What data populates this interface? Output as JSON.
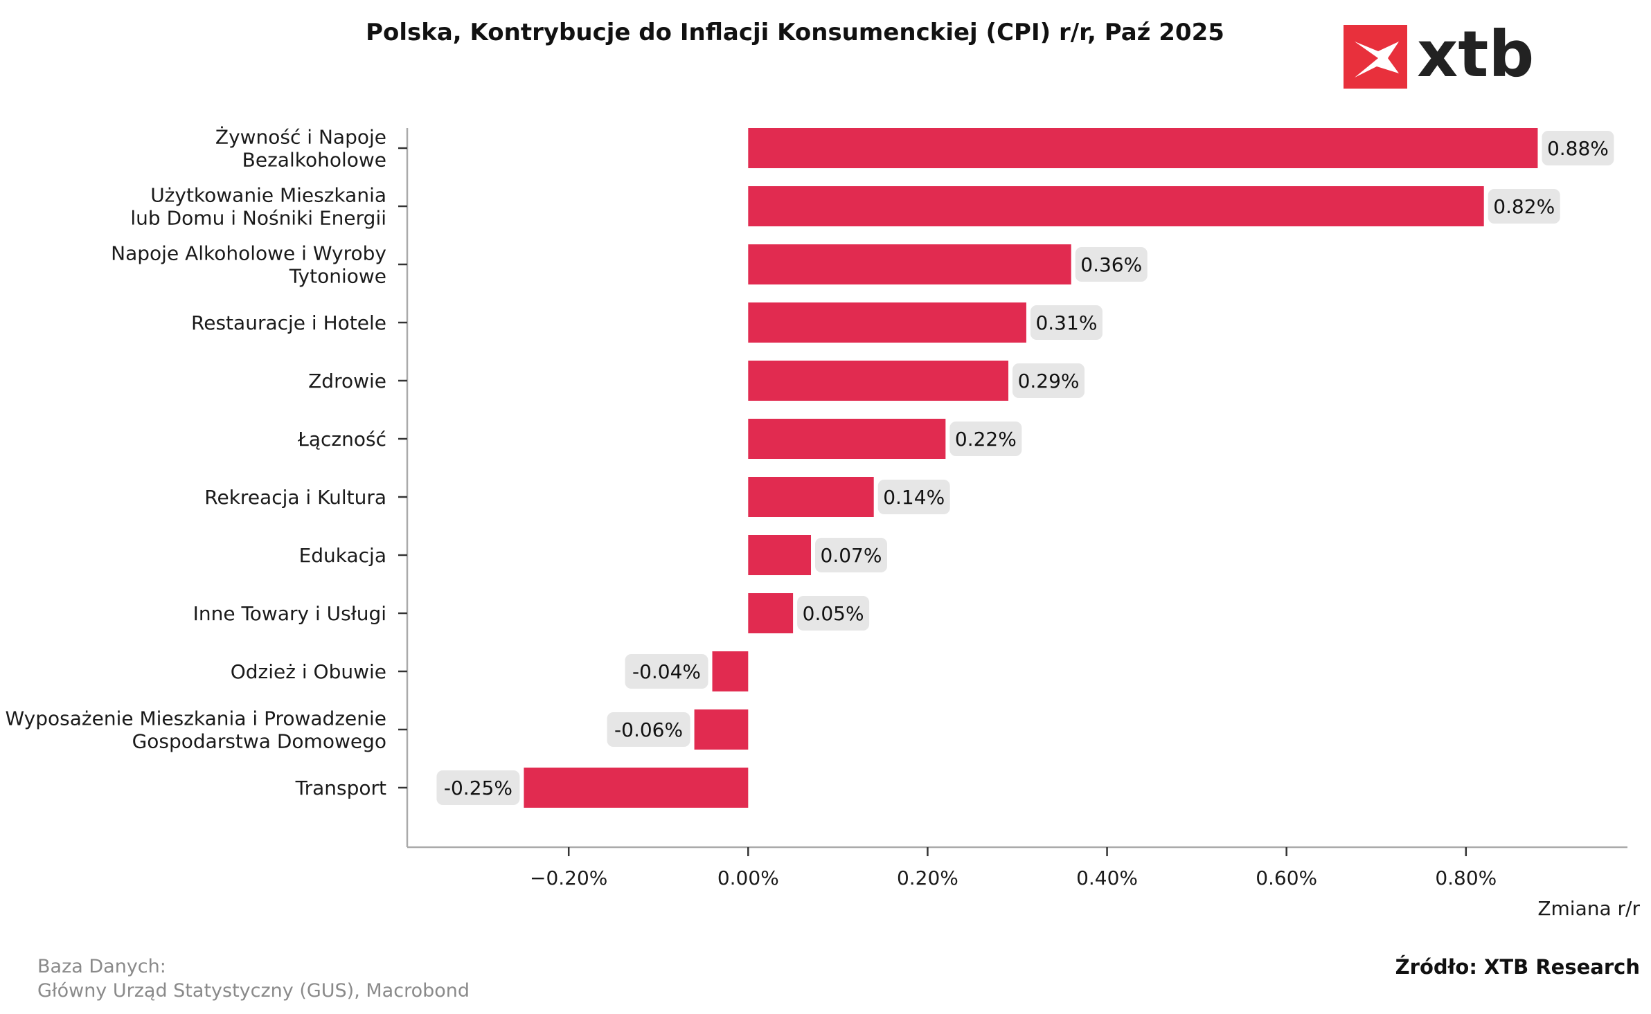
{
  "chart_data": {
    "type": "bar",
    "orientation": "horizontal",
    "title": "Polska, Kontrybucje do Inflacji Konsumenckiej (CPI) r/r, Paź 2025",
    "xlabel": "Zmiana r/r",
    "ylabel": "",
    "xlim": [
      -0.38,
      0.98
    ],
    "grid": false,
    "x_ticks": [
      {
        "value": -0.2,
        "label": "−0.20%"
      },
      {
        "value": 0.0,
        "label": "0.00%"
      },
      {
        "value": 0.2,
        "label": "0.20%"
      },
      {
        "value": 0.4,
        "label": "0.40%"
      },
      {
        "value": 0.6,
        "label": "0.60%"
      },
      {
        "value": 0.8,
        "label": "0.80%"
      }
    ],
    "categories": [
      [
        "Żywność i Napoje",
        "Bezalkoholowe"
      ],
      [
        "Użytkowanie Mieszkania",
        "lub Domu i Nośniki Energii"
      ],
      [
        "Napoje Alkoholowe i Wyroby",
        "Tytoniowe"
      ],
      [
        "Restauracje i Hotele"
      ],
      [
        "Zdrowie"
      ],
      [
        "Łączność"
      ],
      [
        "Rekreacja i Kultura"
      ],
      [
        "Edukacja"
      ],
      [
        "Inne Towary i Usługi"
      ],
      [
        "Odzież i Obuwie"
      ],
      [
        "Wyposażenie Mieszkania i Prowadzenie",
        "Gospodarstwa Domowego"
      ],
      [
        "Transport"
      ]
    ],
    "values": [
      0.88,
      0.82,
      0.36,
      0.31,
      0.29,
      0.22,
      0.14,
      0.07,
      0.05,
      -0.04,
      -0.06,
      -0.25
    ],
    "value_labels": [
      "0.88%",
      "0.82%",
      "0.36%",
      "0.31%",
      "0.29%",
      "0.22%",
      "0.14%",
      "0.07%",
      "0.05%",
      "-0.04%",
      "-0.06%",
      "-0.25%"
    ],
    "bar_color": "#e12b50",
    "label_bg_color": "#e6e6e6"
  },
  "logo": {
    "text": "xtb",
    "color": "#e8303c"
  },
  "source": {
    "lines": [
      "Baza Danych:",
      "Główny Urząd Statystyczny (GUS), Macrobond"
    ]
  },
  "credit": "Źródło: XTB Research"
}
